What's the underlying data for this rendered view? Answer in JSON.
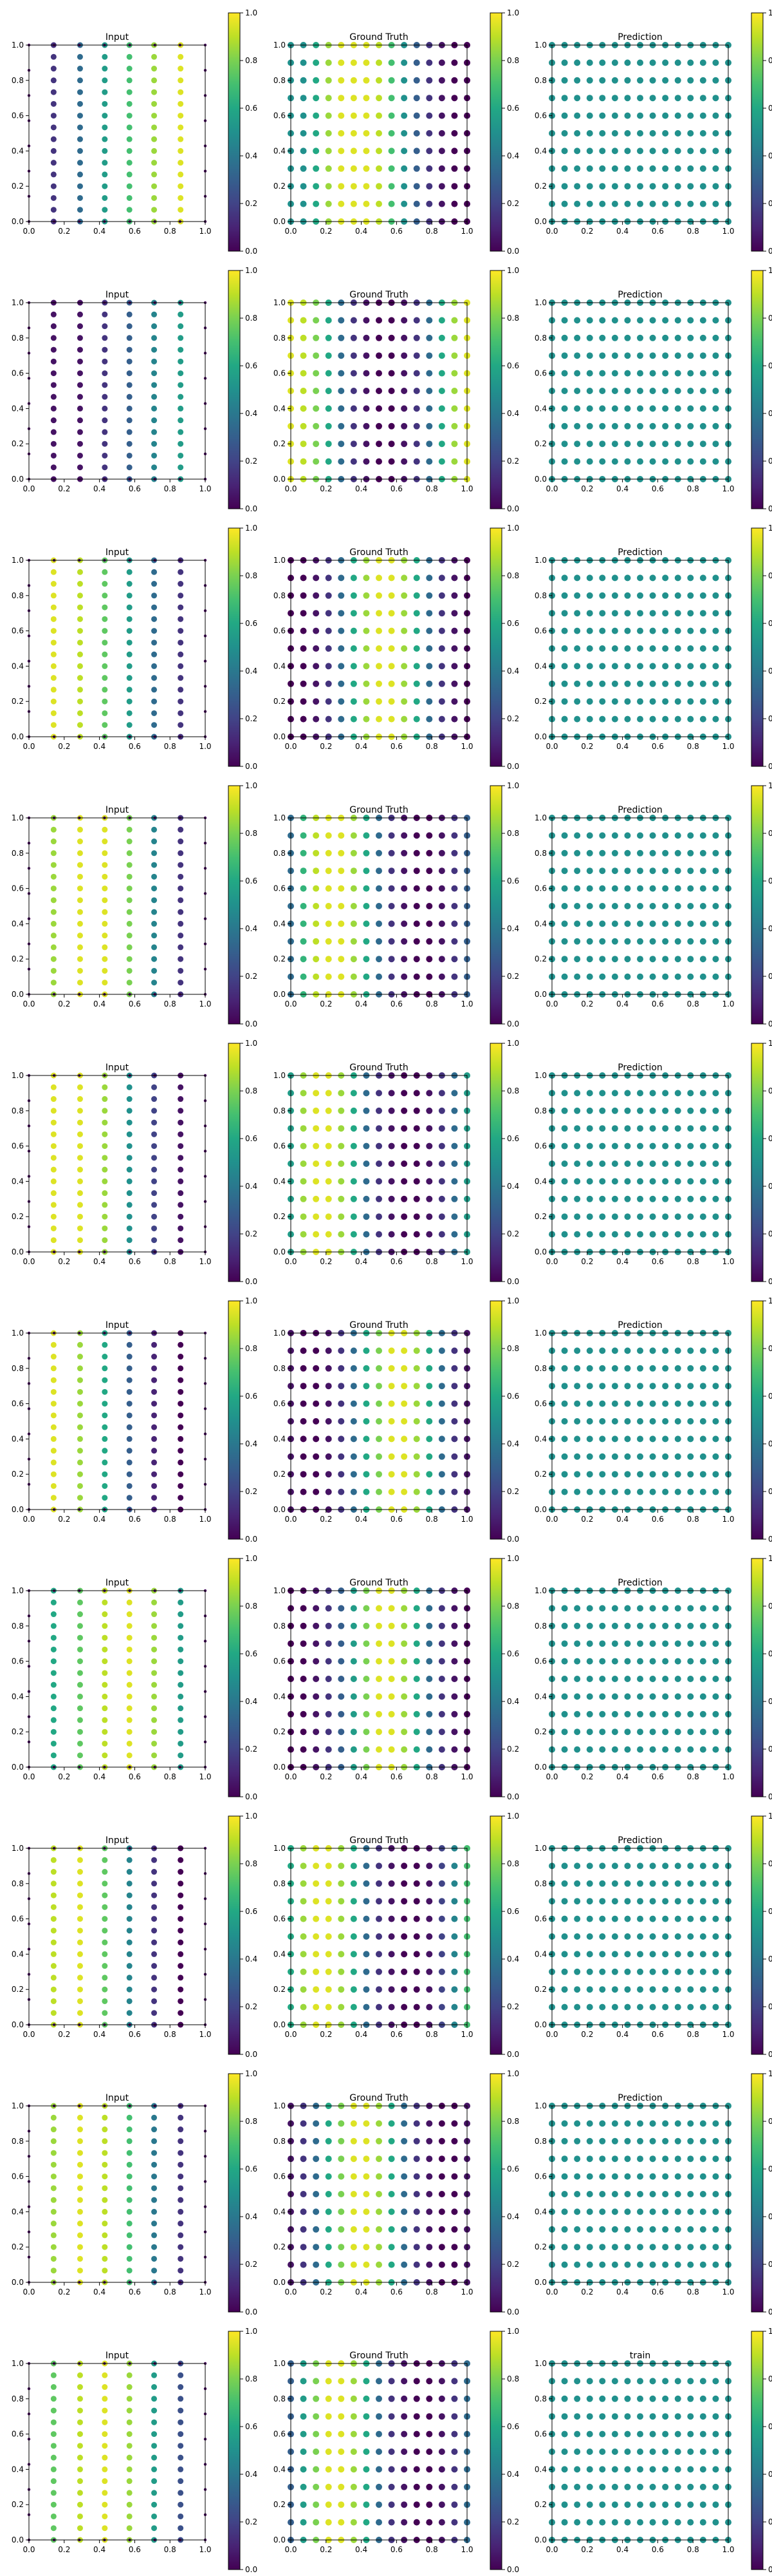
{
  "figure": {
    "colormap": "viridis",
    "colorbar_ticks": [
      "0.0",
      "0.2",
      "0.4",
      "0.6",
      "0.8",
      "1.0"
    ],
    "x_ticks": [
      "0.0",
      "0.2",
      "0.4",
      "0.6",
      "0.8",
      "1.0"
    ],
    "y_ticks": [
      "0.0",
      "0.2",
      "0.4",
      "0.6",
      "0.8",
      "1.0"
    ]
  },
  "chart_data": {
    "type": "scatter",
    "layout": "10 rows x 3 panels (Input, Ground Truth, Prediction), each with a viridis colorbar 0.0-1.0",
    "xlim": [
      0,
      1
    ],
    "ylim": [
      0,
      1
    ],
    "clim": [
      0,
      1
    ],
    "grid": false,
    "prediction_value": 0.5,
    "panel_titles": [
      "Input",
      "Ground Truth",
      "Prediction"
    ],
    "last_row_titles": [
      "Input",
      "Ground Truth",
      "train"
    ],
    "input_column_x": [
      0.14,
      0.29,
      0.43,
      0.57,
      0.71,
      0.86
    ],
    "input_points_per_column": 16,
    "truth_grid_columns": 15,
    "truth_grid_rows": 11,
    "rows": [
      {
        "input_columns": [
          0.15,
          0.35,
          0.55,
          0.7,
          0.85,
          0.95
        ],
        "truth_columns": [
          0.5,
          0.5,
          0.6,
          0.85,
          0.95,
          0.95,
          0.95,
          0.9,
          0.7,
          0.5,
          0.3,
          0.15,
          0.05,
          0.0,
          0.0
        ]
      },
      {
        "input_columns": [
          0.05,
          0.05,
          0.15,
          0.3,
          0.45,
          0.55
        ],
        "truth_columns": [
          0.95,
          0.9,
          0.8,
          0.6,
          0.35,
          0.15,
          0.05,
          0.0,
          0.0,
          0.05,
          0.15,
          0.35,
          0.6,
          0.85,
          0.95
        ]
      },
      {
        "input_columns": [
          0.95,
          0.9,
          0.75,
          0.55,
          0.35,
          0.15
        ],
        "truth_columns": [
          0.0,
          0.0,
          0.05,
          0.15,
          0.35,
          0.6,
          0.85,
          0.95,
          0.95,
          0.85,
          0.6,
          0.35,
          0.15,
          0.05,
          0.0
        ]
      },
      {
        "input_columns": [
          0.85,
          0.95,
          0.95,
          0.8,
          0.45,
          0.15
        ],
        "truth_columns": [
          0.35,
          0.65,
          0.9,
          0.95,
          0.95,
          0.85,
          0.6,
          0.35,
          0.15,
          0.05,
          0.0,
          0.0,
          0.05,
          0.15,
          0.3
        ]
      },
      {
        "input_columns": [
          0.95,
          0.95,
          0.85,
          0.5,
          0.2,
          0.05
        ],
        "truth_columns": [
          0.55,
          0.85,
          0.95,
          0.95,
          0.85,
          0.6,
          0.35,
          0.15,
          0.05,
          0.0,
          0.0,
          0.05,
          0.15,
          0.35,
          0.55
        ]
      },
      {
        "input_columns": [
          0.95,
          0.85,
          0.6,
          0.3,
          0.1,
          0.0
        ],
        "truth_columns": [
          0.05,
          0.0,
          0.0,
          0.05,
          0.15,
          0.35,
          0.6,
          0.8,
          0.95,
          0.95,
          0.85,
          0.6,
          0.35,
          0.15,
          0.05
        ]
      },
      {
        "input_columns": [
          0.6,
          0.75,
          0.9,
          0.95,
          0.85,
          0.55
        ],
        "truth_columns": [
          0.0,
          0.0,
          0.05,
          0.15,
          0.3,
          0.55,
          0.8,
          0.95,
          0.95,
          0.85,
          0.6,
          0.35,
          0.15,
          0.05,
          0.0
        ]
      },
      {
        "input_columns": [
          0.9,
          0.95,
          0.75,
          0.45,
          0.15,
          0.0
        ],
        "truth_columns": [
          0.6,
          0.85,
          0.95,
          0.95,
          0.85,
          0.6,
          0.35,
          0.15,
          0.05,
          0.0,
          0.0,
          0.05,
          0.2,
          0.45,
          0.7
        ]
      },
      {
        "input_columns": [
          0.85,
          0.95,
          0.9,
          0.7,
          0.4,
          0.15
        ],
        "truth_columns": [
          0.05,
          0.15,
          0.35,
          0.6,
          0.8,
          0.95,
          0.95,
          0.85,
          0.6,
          0.35,
          0.15,
          0.05,
          0.0,
          0.0,
          0.05
        ]
      },
      {
        "input_columns": [
          0.75,
          0.9,
          0.95,
          0.85,
          0.55,
          0.25
        ],
        "truth_columns": [
          0.3,
          0.55,
          0.8,
          0.95,
          0.95,
          0.85,
          0.6,
          0.35,
          0.15,
          0.05,
          0.0,
          0.0,
          0.05,
          0.15,
          0.35
        ]
      }
    ]
  }
}
